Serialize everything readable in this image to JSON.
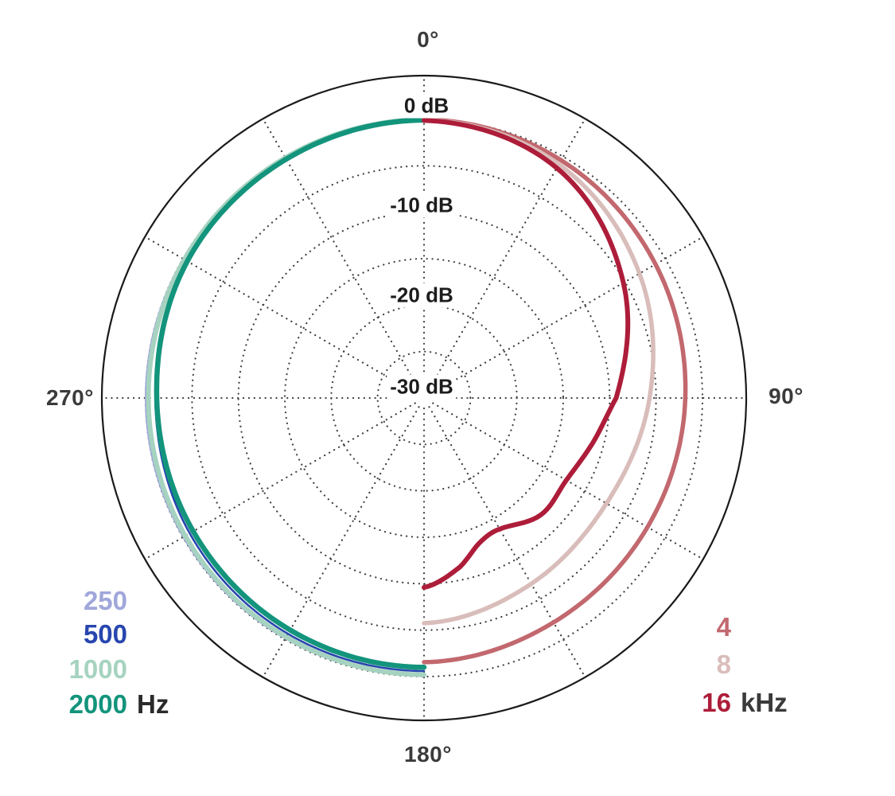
{
  "chart_data": {
    "type": "line",
    "subtype": "polar",
    "description": "Polar frequency response pattern; low frequencies plotted on left half, high frequencies on right half",
    "angular_ticks": [
      {
        "label": "0°",
        "deg": 0
      },
      {
        "label": "90°",
        "deg": 90
      },
      {
        "label": "180°",
        "deg": 180
      },
      {
        "label": "270°",
        "deg": 270
      }
    ],
    "radial_ticks": [
      {
        "label": "0 dB",
        "db": 0
      },
      {
        "label": "-10 dB",
        "db": -10
      },
      {
        "label": "-20 dB",
        "db": -20
      },
      {
        "label": "-30 dB",
        "db": -30
      }
    ],
    "grid": {
      "db_min": -30,
      "db_max": 0,
      "ring_interval_db": 5,
      "spoke_interval_deg": 30,
      "grid_color": "#404040",
      "outer_circle_color": "#1a1a1a"
    },
    "series": [
      {
        "name": "250 Hz",
        "color": "#a0a7da",
        "width": 2.4,
        "points": [
          [
            180,
            -0.12
          ],
          [
            210,
            -0.1
          ],
          [
            240,
            -0.06
          ],
          [
            270,
            -0.02
          ],
          [
            300,
            -0.04
          ],
          [
            330,
            -0.05
          ],
          [
            360,
            0
          ]
        ]
      },
      {
        "name": "500 Hz",
        "color": "#2846ae",
        "width": 2.6,
        "points": [
          [
            180,
            -0.6
          ],
          [
            210,
            -0.68
          ],
          [
            240,
            -0.85
          ],
          [
            270,
            -1.05
          ],
          [
            300,
            -0.5
          ],
          [
            330,
            -0.28
          ],
          [
            360,
            -0.05
          ]
        ]
      },
      {
        "name": "1000 Hz",
        "color": "#a6d3c0",
        "width": 6,
        "points": [
          [
            180,
            -0.2
          ],
          [
            210,
            -0.28
          ],
          [
            240,
            -0.3
          ],
          [
            270,
            -0.3
          ],
          [
            300,
            -0.18
          ],
          [
            330,
            -0.12
          ],
          [
            360,
            -0.03
          ]
        ]
      },
      {
        "name": "2000 Hz",
        "color": "#13947c",
        "width": 6.5,
        "points": [
          [
            180,
            -1.0
          ],
          [
            210,
            -1.15
          ],
          [
            240,
            -1.28
          ],
          [
            270,
            -1.2
          ],
          [
            300,
            -0.55
          ],
          [
            330,
            -0.3
          ],
          [
            360,
            -0.07
          ]
        ]
      },
      {
        "name": "4 kHz",
        "color": "#c2686e",
        "width": 5.5,
        "points": [
          [
            0,
            0
          ],
          [
            30,
            -0.45
          ],
          [
            60,
            -1.2
          ],
          [
            90,
            -1.85
          ],
          [
            120,
            -2.2
          ],
          [
            150,
            -2.1
          ],
          [
            180,
            -1.55
          ]
        ]
      },
      {
        "name": "8 kHz",
        "color": "#d9bdbb",
        "width": 5.5,
        "points": [
          [
            0,
            -0.05
          ],
          [
            30,
            -0.95
          ],
          [
            60,
            -3.2
          ],
          [
            90,
            -5.7
          ],
          [
            120,
            -7.3
          ],
          [
            150,
            -6.9
          ],
          [
            180,
            -5.75
          ]
        ]
      },
      {
        "name": "16 kHz",
        "color": "#ad1d39",
        "width": 6,
        "points": [
          [
            0,
            -0.1
          ],
          [
            30,
            -1.4
          ],
          [
            60,
            -5.2
          ],
          [
            90,
            -9.3
          ],
          [
            105,
            -11.2
          ],
          [
            120,
            -12.3
          ],
          [
            135,
            -12.2
          ],
          [
            150,
            -13.7
          ],
          [
            159,
            -13.3
          ],
          [
            168,
            -11.4
          ],
          [
            180,
            -9.6
          ]
        ]
      }
    ]
  },
  "legend_left": {
    "unit_color": "#2a2a2a",
    "rows": [
      {
        "value": "250",
        "unit": ""
      },
      {
        "value": "500",
        "unit": ""
      },
      {
        "value": "1000",
        "unit": ""
      },
      {
        "value": "2000",
        "unit": "Hz"
      }
    ]
  },
  "legend_right": {
    "unit_color": "#3a3a3a",
    "rows": [
      {
        "value": "4",
        "unit": ""
      },
      {
        "value": "8",
        "unit": ""
      },
      {
        "value": "16",
        "unit": "kHz"
      }
    ]
  }
}
